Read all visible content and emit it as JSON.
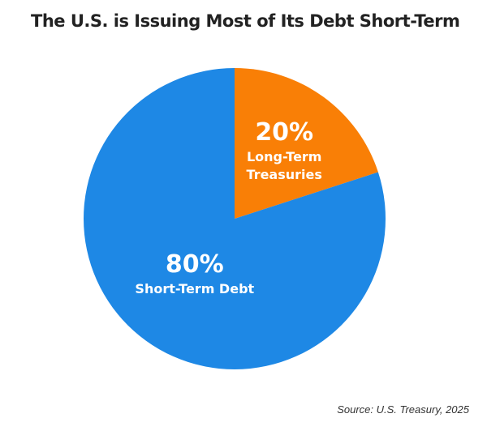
{
  "chart_data": {
    "type": "pie",
    "title": "The U.S. is Issuing Most of Its Debt Short-Term",
    "categories": [
      "Long-Term Treasuries",
      "Short-Term Debt"
    ],
    "values": [
      20,
      80
    ],
    "value_labels": [
      "20%",
      "80%"
    ],
    "colors": [
      "#f97f06",
      "#1e88e5"
    ],
    "source": "Source: U.S. Treasury, 2025"
  }
}
